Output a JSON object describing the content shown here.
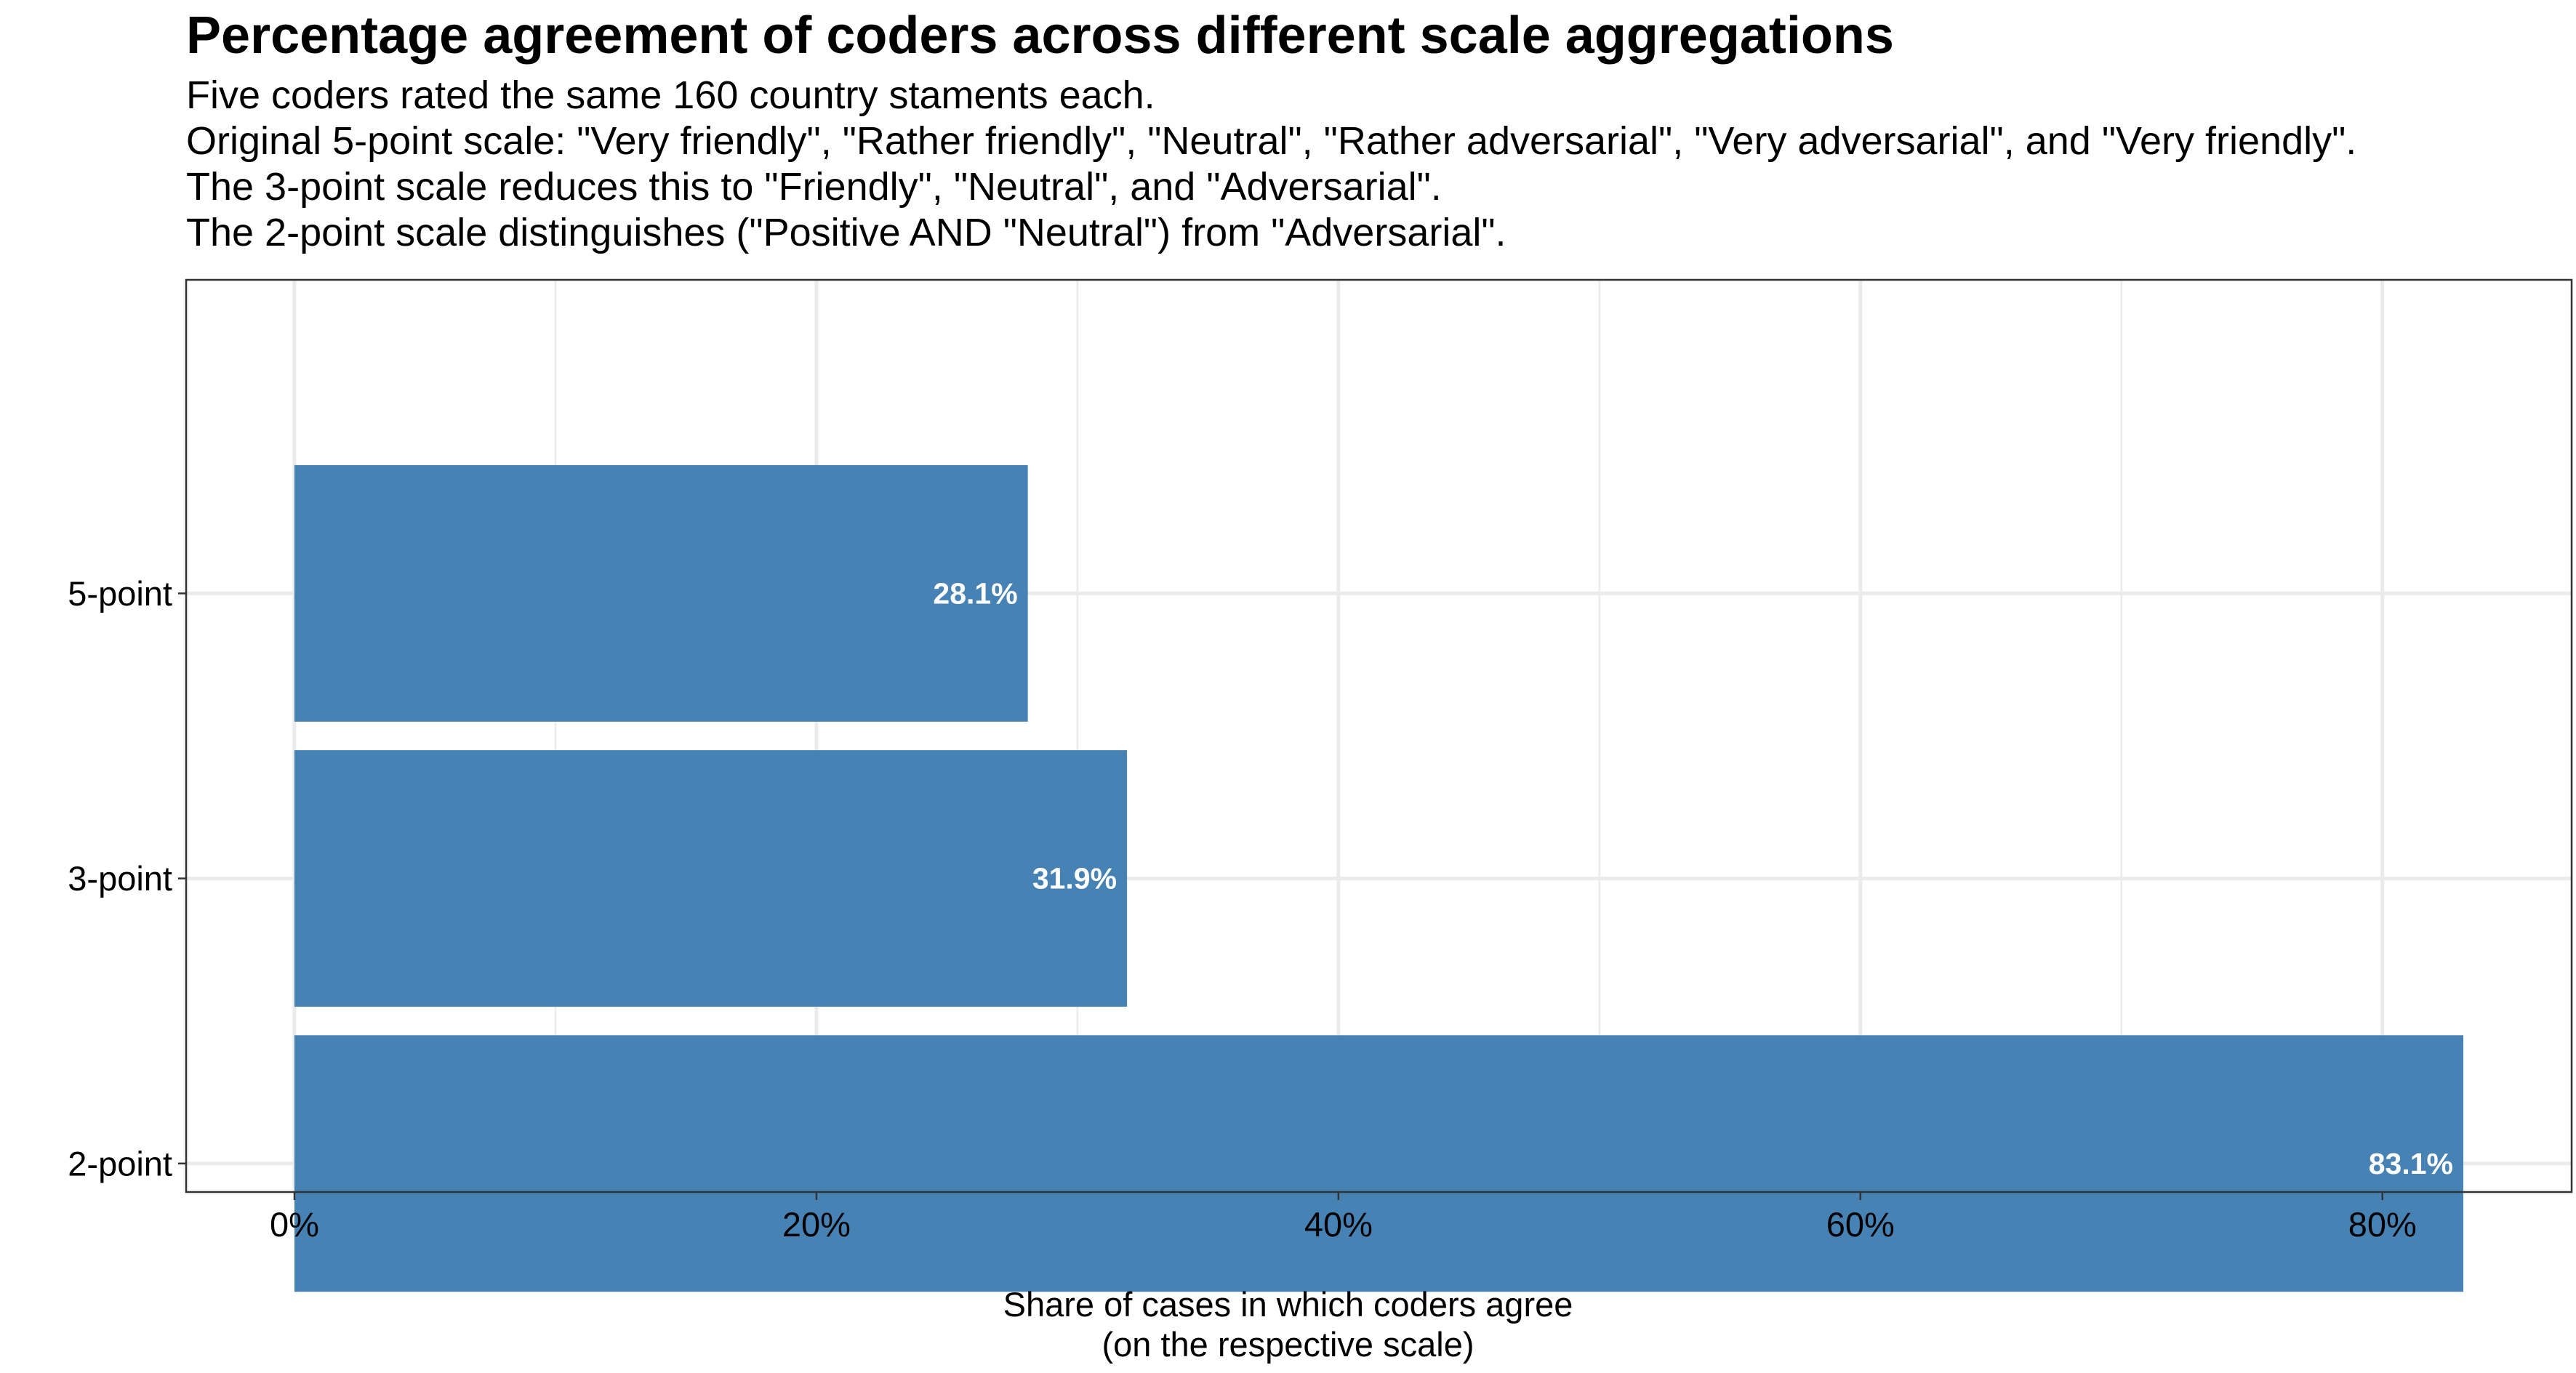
{
  "chart_data": {
    "type": "bar",
    "orientation": "horizontal",
    "title": "Percentage agreement of coders across different scale aggregations",
    "subtitle": [
      "Five coders rated the same 160 country staments each.",
      "Original 5-point scale: \"Very friendly\", \"Rather friendly\", \"Neutral\", \"Rather adversarial\", \"Very adversarial\", and \"Very friendly\".",
      "The 3-point scale reduces this to \"Friendly\", \"Neutral\", and \"Adversarial\".",
      "The 2-point scale distinguishes (\"Positive AND \"Neutral\") from \"Adversarial\"."
    ],
    "categories": [
      "5-point",
      "3-point",
      "2-point"
    ],
    "values": [
      28.1,
      31.9,
      83.1
    ],
    "data_labels": [
      "28.1%",
      "31.9%",
      "83.1%"
    ],
    "xlabel": [
      "Share of cases in which coders agree",
      "(on the respective scale)"
    ],
    "ylabel": "",
    "xlim": [
      -4.15,
      87.25
    ],
    "xticks": [
      0,
      20,
      40,
      60,
      80
    ],
    "xtick_labels": [
      "0%",
      "20%",
      "40%",
      "60%",
      "80%"
    ],
    "grid": true,
    "bar_color": "#4682B4",
    "label_color": "#ffffff"
  }
}
